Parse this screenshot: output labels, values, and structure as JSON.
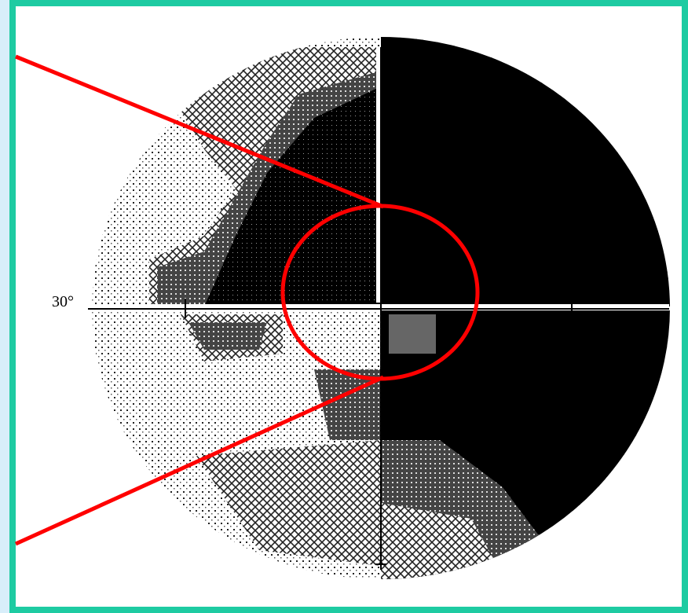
{
  "label": "30°"
}
